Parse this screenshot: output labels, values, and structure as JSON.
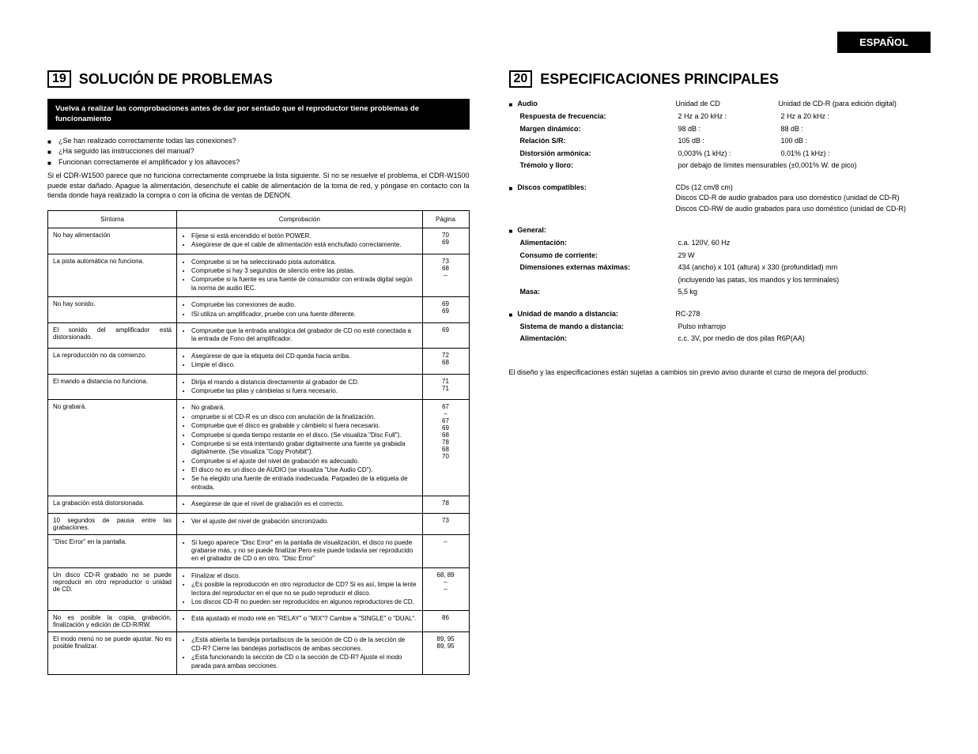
{
  "langTab": "ESPAÑOL",
  "left": {
    "secNum": "19",
    "secTitle": "SOLUCIÓN DE PROBLEMAS",
    "band": "Vuelva a realizar las comprobaciones antes de dar por sentado que el reproductor tiene problemas de funcionamiento",
    "checks": [
      "¿Se han realizado correctamente todas las conexiones?",
      "¿Ha seguido las instrucciones del manual?",
      "Funcionan correctamente el amplificador y los altavoces?"
    ],
    "intro": "Si el CDR-W1500 parece que no funciona correctamente compruebe la lista siguiente. Si no se resuelve el problema, el CDR-W1500 puede estar dañado. Apague la alimentación, desenchufe el cable de alimentación de la toma de red, y póngase en contacto con la tienda donde haya realizado la compra o con la oficina de ventas de DENON.",
    "headers": {
      "symptom": "Síntoma",
      "check": "Comprobación",
      "page": "Página"
    },
    "rows": [
      {
        "symptom": "No hay alimentación",
        "checks": [
          "Fíjese si está encendido el botón POWER.",
          "Asegúrese de que el cable de alimentación está enchufado correctamente."
        ],
        "pages": [
          "70",
          "69"
        ]
      },
      {
        "symptom": "La pista automática no funciona.",
        "checks": [
          "Compruebe si se ha seleccionado pista automática.",
          "Compruebe si hay 3 segundos de silencio entre las pistas.",
          "Compruebe si la fuente es una fuente de consumidor con entrada digital según la norma de audio IEC."
        ],
        "pages": [
          "73",
          "68",
          "–"
        ]
      },
      {
        "symptom": "No hay sonido.",
        "checks": [
          "Compruebe las conexiones de audio.",
          "ISi utiliza un amplificador, pruebe con una fuente diferente."
        ],
        "pages": [
          "69",
          "69"
        ]
      },
      {
        "symptom": "El sonido del amplificador está distorsionado.",
        "checks": [
          "Compruebe que la entrada analógica del grabador de CD no esté conectada a la entrada de Fono del amplificador."
        ],
        "pages": [
          "69"
        ]
      },
      {
        "symptom": "La reproducción no da comienzo.",
        "checks": [
          "Asegúrese de que la etiqueta del CD queda hacia arriba.",
          "Limpie el disco."
        ],
        "pages": [
          "72",
          "68"
        ]
      },
      {
        "symptom": "El mando a distancia no funciona.",
        "checks": [
          "Dirija el mando a distancia directamente al grabador de CD.",
          "Compruebe las pilas y cámbielas si fuera necesario."
        ],
        "pages": [
          "71",
          "71"
        ]
      },
      {
        "symptom": "No grabará.",
        "checks": [
          "No grabará.",
          "ompruebe si el CD-R es un disco con anulación de la finalización.",
          "Compruebe que el disco es grabable y cámbielo si fuera necesario.",
          "Compruebe si queda tiempo restante en el disco. (Se visualiza \"Disc Full\").",
          "Compruebe si se está intentando grabar digitalmente una fuente ya grabada digitalmente. (Se visualiza \"Copy Prohibit\").",
          "Compruebe si el ajuste del nivel de grabación es adecuado.",
          "El disco no es un disco de AUDIO (se visualiza \"Use Audio CD\").",
          "Se ha elegido una fuente de entrada inadecuada. Parpadeo de la etiqueta de entrada."
        ],
        "pages": [
          "67",
          "–",
          "67",
          "69",
          "68",
          "78",
          "68",
          "70"
        ]
      },
      {
        "symptom": "La grabación está distorsionada.",
        "checks": [
          "Asegúrese de que el nivel de grabación es el correcto."
        ],
        "pages": [
          "78"
        ]
      },
      {
        "symptom": "10 segundos de pausa entre las grabaciones.",
        "checks": [
          "Ver el ajuste del nivel de grabación sincronizado."
        ],
        "pages": [
          "73"
        ]
      },
      {
        "symptom": "\"Disc Error\" en la pantalla.",
        "checks": [
          "Si luego aparece \"Disc Error\" en la pantalla de visualización, el disco no puede grabarse más, y no se puede finalizar.Pero este puede todavía ser reproducido en el grabador de CD o en otro. \"Disc Error\""
        ],
        "pages": [
          "–"
        ]
      },
      {
        "symptom": "Un disco CD-R grabado no se puede reproducir en otro reproductor o unidad de CD.",
        "checks": [
          "Finalizar el disco.",
          "¿Es posible la reproducción en otro reproductor de CD? Si es así, limpie la lente lectora del reproductor en el que no se pudo reproducir el disco.",
          "Los discos CD-R no pueden ser reproducidos en algunos reproductores de CD."
        ],
        "pages": [
          "68, 89",
          "–",
          "–"
        ]
      },
      {
        "symptom": "No es posible la copia, grabación, finalización y edición de CD-R/RW.",
        "checks": [
          "Está ajustado el modo relé en \"RELAY\" o \"MIX\"? Cambie a \"SINGLE\" o \"DUAL\"."
        ],
        "pages": [
          "86"
        ]
      },
      {
        "symptom": "El modo menú no se puede ajustar. No es posible finalizar.",
        "checks": [
          "¿Está abierta la bandeja portadiscos de la sección de CD o de la sección de CD-R? Cierre las bandejas portadiscos de ambas secciones.",
          "¿Está funcionando la sección de CD o la sección de CD-R? Ajuste el modo parada para ambas secciones."
        ],
        "pages": [
          "89, 95",
          "89, 95"
        ]
      }
    ]
  },
  "right": {
    "secNum": "20",
    "secTitle": "ESPECIFICACIONES PRINCIPALES",
    "audio": {
      "head": "Audio",
      "col1": "Unidad de CD",
      "col2": "Unidad de CD-R (para edición digital)",
      "rows": [
        {
          "label": "Respuesta de frecuencia:",
          "v1": "2 Hz a 20 kHz :",
          "v2": "2 Hz a 20 kHz :"
        },
        {
          "label": "Margen dinámico:",
          "v1": "98 dB :",
          "v2": "88 dB :"
        },
        {
          "label": "Relación S/R:",
          "v1": "105 dB :",
          "v2": "100 dB :"
        },
        {
          "label": "Distorsión armónica:",
          "v1": "0,003% (1 kHz) :",
          "v2": "0,01% (1 kHz) :"
        }
      ],
      "tremolo": {
        "label": "Trémolo y lloro:",
        "val": "por debajo de límites mensurables (±0,001% W. de pico)"
      }
    },
    "discs": {
      "head": "Discos compatibles:",
      "vals": [
        "CDs (12 cm/8 cm)",
        "Discos CD-R de audio grabados para uso doméstico (unidad de CD-R)",
        "Discos CD-RW de audio grabados para uso doméstico (unidad de CD-R)"
      ]
    },
    "general": {
      "head": "General:",
      "rows": [
        {
          "label": "Alimentación:",
          "val": "c.a. 120V, 60 Hz"
        },
        {
          "label": "Consumo de corriente:",
          "val": "29 W"
        },
        {
          "label": "Dimensiones externas máximas:",
          "val": "434 (ancho) x 101 (altura) x 330 (profundidad) mm"
        }
      ],
      "dimNote": "(incluyendo las patas, los mandos y los terminales)",
      "massLabel": "Masa:",
      "massVal": "5,5 kg"
    },
    "remote": {
      "rows": [
        {
          "label": "Unidad de mando a distancia:",
          "val": "RC-278"
        },
        {
          "label": "Sistema de mando a distancia:",
          "val": "Pulso infrarrojo"
        },
        {
          "label": "Alimentación:",
          "val": "c.c. 3V, por medio de dos pilas R6P(AA)"
        }
      ]
    },
    "foot": "El diseño y las especificaciones están sujetas a cambios sin previo aviso durante el curso de mejora del producto."
  }
}
